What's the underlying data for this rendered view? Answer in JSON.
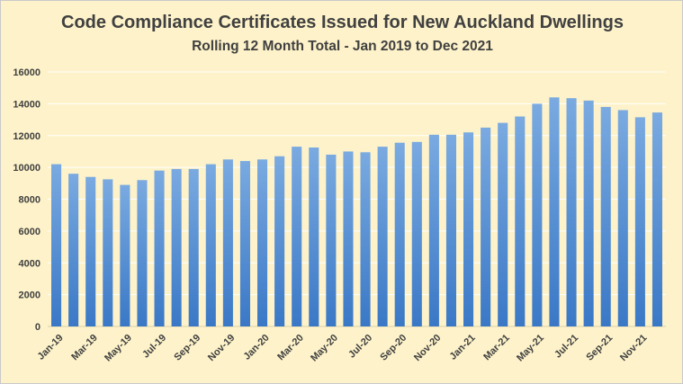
{
  "chart_data": {
    "type": "bar",
    "title": "Code Compliance Certificates Issued for New Auckland Dwellings",
    "subtitle": "Rolling 12 Month Total  -  Jan 2019 to Dec 2021",
    "xlabel": "",
    "ylabel": "",
    "ylim": [
      0,
      16000
    ],
    "yticks": [
      0,
      2000,
      4000,
      6000,
      8000,
      10000,
      12000,
      14000,
      16000
    ],
    "grid": true,
    "legend": "none",
    "categories": [
      "Jan-19",
      "Feb-19",
      "Mar-19",
      "Apr-19",
      "May-19",
      "Jun-19",
      "Jul-19",
      "Aug-19",
      "Sep-19",
      "Oct-19",
      "Nov-19",
      "Dec-19",
      "Jan-20",
      "Feb-20",
      "Mar-20",
      "Apr-20",
      "May-20",
      "Jun-20",
      "Jul-20",
      "Aug-20",
      "Sep-20",
      "Oct-20",
      "Nov-20",
      "Dec-20",
      "Jan-21",
      "Feb-21",
      "Mar-21",
      "Apr-21",
      "May-21",
      "Jun-21",
      "Jul-21",
      "Aug-21",
      "Sep-21",
      "Oct-21",
      "Nov-21",
      "Dec-21"
    ],
    "shown_tick_labels": [
      "Jan-19",
      "Mar-19",
      "May-19",
      "Jul-19",
      "Sep-19",
      "Nov-19",
      "Jan-20",
      "Mar-20",
      "May-20",
      "Jul-20",
      "Sep-20",
      "Nov-20",
      "Jan-21",
      "Mar-21",
      "May-21",
      "Jul-21",
      "Sep-21",
      "Nov-21"
    ],
    "values": [
      10200,
      9600,
      9400,
      9250,
      8900,
      9200,
      9800,
      9900,
      9900,
      10200,
      10500,
      10400,
      10500,
      10700,
      11300,
      11250,
      10800,
      11000,
      10950,
      11300,
      11550,
      11600,
      12050,
      12050,
      12200,
      12500,
      12800,
      13200,
      14000,
      14400,
      14350,
      14200,
      13800,
      13600,
      13150,
      13450
    ],
    "colors": {
      "background": "#fdf2c9",
      "bar_top": "#7aaae0",
      "bar_bottom": "#3a78c6",
      "grid": "#ffffff",
      "text": "#404040"
    }
  }
}
